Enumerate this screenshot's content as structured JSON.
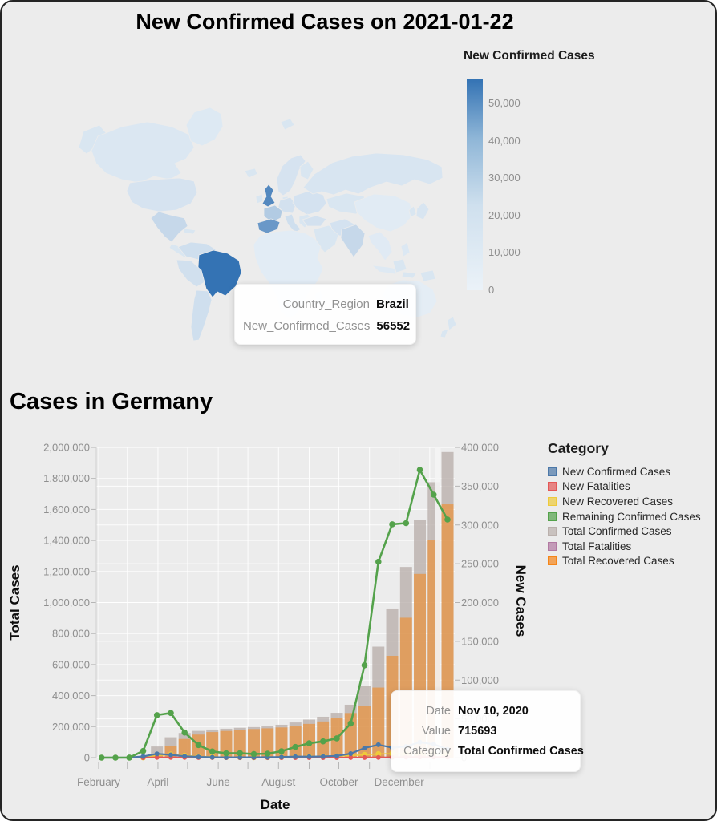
{
  "map_section": {
    "title": "New Confirmed Cases on 2021-01-22",
    "legend_title": "New Confirmed Cases"
  },
  "map_tooltip": {
    "rows": [
      {
        "key": "Country_Region",
        "value": "Brazil"
      },
      {
        "key": "New_Confirmed_Cases",
        "value": "56552"
      }
    ]
  },
  "germany": {
    "title": "Cases in Germany",
    "x_title": "Date",
    "y_left_title": "Total Cases",
    "y_right_title": "New Cases",
    "legend_title": "Category",
    "legend_entries": [
      {
        "label": "New Confirmed Cases",
        "color": "#4c78a8"
      },
      {
        "label": "New Fatalities",
        "color": "#e45756"
      },
      {
        "label": "New Recovered Cases",
        "color": "#eeca3b"
      },
      {
        "label": "Remaining Confirmed Cases",
        "color": "#54a24b"
      },
      {
        "label": "Total Confirmed Cases",
        "color": "#bab0ac"
      },
      {
        "label": "Total Fatalities",
        "color": "#b279a2"
      },
      {
        "label": "Total Recovered Cases",
        "color": "#f58518"
      }
    ]
  },
  "germany_tooltip": {
    "rows": [
      {
        "key": "Date",
        "value": "Nov 10, 2020"
      },
      {
        "key": "Value",
        "value": "715693"
      },
      {
        "key": "Category",
        "value": "Total Confirmed Cases"
      }
    ]
  },
  "chart_data": [
    {
      "type": "choropleth",
      "title": "New Confirmed Cases on 2021-01-22",
      "value_field": "New_Confirmed_Cases",
      "scale": {
        "domain": [
          0,
          56552
        ],
        "min_color": "#ebf2f8",
        "max_color": "#3473b4"
      },
      "legend_ticks": [
        {
          "v": 0,
          "label": "0"
        },
        {
          "v": 10000,
          "label": "10,000"
        },
        {
          "v": 20000,
          "label": "20,000"
        },
        {
          "v": 30000,
          "label": "30,000"
        },
        {
          "v": 40000,
          "label": "40,000"
        },
        {
          "v": 50000,
          "label": "50,000"
        }
      ],
      "default_value": 5500,
      "countries": {
        "brazil": 56552,
        "united-kingdom": 47000,
        "spain": 40000,
        "france": 17500,
        "mexico": 11500,
        "india": 11500,
        "italy": 8500,
        "central-europe": 7500,
        "east-europe": 7000,
        "colombia": 8500,
        "peru": 8000,
        "argentina": 8500,
        "usa": 6500,
        "canada": 5000,
        "russia": 6000,
        "scandinavia": 6500,
        "turkey": 7500,
        "iran": 7000,
        "africa": 2800,
        "china": 3000,
        "australia": 2200,
        "japan": 6000,
        "indonesia": 4000,
        "se-asia": 3500,
        "saudi-arabia": 5500,
        "greenland": 4200,
        "madagascar": 3000,
        "philippines": 4500
      }
    },
    {
      "type": "combo",
      "title": "Cases in Germany",
      "xlabel": "Date",
      "ylabel_left": "Total Cases",
      "ylabel_right": "New Cases",
      "ylim_left": [
        0,
        2000000
      ],
      "ylim_right": [
        0,
        400000
      ],
      "x_month_labels": [
        "February",
        "",
        "April",
        "",
        "June",
        "",
        "August",
        "",
        "October",
        "",
        "December",
        ""
      ],
      "y_left_ticks": [
        {
          "v": 0,
          "label": "0"
        },
        {
          "v": 200000,
          "label": "200,000"
        },
        {
          "v": 400000,
          "label": "400,000"
        },
        {
          "v": 600000,
          "label": "600,000"
        },
        {
          "v": 800000,
          "label": "800,000"
        },
        {
          "v": 1000000,
          "label": "1,000,000"
        },
        {
          "v": 1200000,
          "label": "1,200,000"
        },
        {
          "v": 1400000,
          "label": "1,400,000"
        },
        {
          "v": 1600000,
          "label": "1,600,000"
        },
        {
          "v": 1800000,
          "label": "1,800,000"
        },
        {
          "v": 2000000,
          "label": "2,000,000"
        }
      ],
      "y_right_ticks": [
        {
          "v": 0,
          "label": "0"
        },
        {
          "v": 50000,
          "label": "50,000"
        },
        {
          "v": 100000,
          "label": "100,000"
        },
        {
          "v": 150000,
          "label": "150,000"
        },
        {
          "v": 200000,
          "label": "200,000"
        },
        {
          "v": 250000,
          "label": "250,000"
        },
        {
          "v": 300000,
          "label": "300,000"
        },
        {
          "v": 350000,
          "label": "350,000"
        },
        {
          "v": 400000,
          "label": "400,000"
        }
      ],
      "x": [
        "2020-02-04",
        "2020-02-18",
        "2020-03-03",
        "2020-03-17",
        "2020-03-31",
        "2020-04-14",
        "2020-04-28",
        "2020-05-12",
        "2020-05-26",
        "2020-06-09",
        "2020-06-23",
        "2020-07-07",
        "2020-07-21",
        "2020-08-04",
        "2020-08-18",
        "2020-09-01",
        "2020-09-15",
        "2020-09-29",
        "2020-10-13",
        "2020-10-27",
        "2020-11-10",
        "2020-11-24",
        "2020-12-08",
        "2020-12-22",
        "2021-01-05",
        "2021-01-19"
      ],
      "series": [
        {
          "name": "Total Fatalities",
          "mark": "bar",
          "axis": "left",
          "color": "#b279a2",
          "opacity": 0.7,
          "values": [
            0,
            0,
            0,
            26,
            775,
            3294,
            6288,
            7661,
            8302,
            8752,
            8914,
            9074,
            9118,
            9201,
            9236,
            9290,
            9336,
            9464,
            9634,
            10032,
            11240,
            14361,
            19932,
            27006,
            35748,
            47622
          ]
        },
        {
          "name": "Total Confirmed Cases",
          "mark": "bar",
          "axis": "left",
          "color": "#bab0ac",
          "opacity": 0.8,
          "values": [
            16,
            16,
            196,
            9257,
            71808,
            131359,
            159119,
            172576,
            181200,
            186522,
            192480,
            198064,
            203368,
            212111,
            226914,
            245456,
            263663,
            289219,
            341223,
            464239,
            715693,
            961320,
            1229269,
            1530180,
            1775513,
            1970000
          ]
        },
        {
          "name": "Total Recovered Cases",
          "mark": "bar",
          "axis": "left",
          "color": "#f58518",
          "opacity": 0.55,
          "values": [
            0,
            12,
            25,
            500,
            16100,
            72600,
            120400,
            148700,
            164900,
            172200,
            177800,
            184400,
            189000,
            194600,
            204000,
            217700,
            233300,
            254900,
            287600,
            335100,
            452000,
            656400,
            902100,
            1184400,
            1404200,
            1632800
          ]
        },
        {
          "name": "New Recovered Cases",
          "mark": "line",
          "axis": "right",
          "color": "#eeca3b",
          "width": 1.6,
          "point_r": 3.6,
          "values": [
            0,
            0,
            10,
            200,
            2600,
            4100,
            2700,
            1500,
            900,
            600,
            500,
            450,
            500,
            700,
            1100,
            1300,
            1500,
            2000,
            2600,
            3800,
            4800,
            5200,
            5000,
            4800,
            4600,
            4200
          ]
        },
        {
          "name": "New Fatalities",
          "mark": "line",
          "axis": "right",
          "color": "#e45756",
          "width": 2,
          "point_r": 3,
          "values": [
            0,
            0,
            0,
            40,
            180,
            240,
            190,
            110,
            60,
            30,
            20,
            15,
            15,
            15,
            20,
            25,
            35,
            45,
            70,
            120,
            240,
            410,
            590,
            730,
            840,
            640
          ]
        },
        {
          "name": "New Confirmed Cases",
          "mark": "line",
          "axis": "right",
          "color": "#4c78a8",
          "width": 2.2,
          "point_r": 3,
          "values": [
            1,
            2,
            60,
            1600,
            5000,
            3600,
            1900,
            900,
            500,
            350,
            450,
            400,
            480,
            800,
            1300,
            1250,
            1600,
            2300,
            5200,
            12400,
            16600,
            12800,
            14500,
            19800,
            17300,
            10900
          ]
        },
        {
          "name": "Remaining Confirmed Cases",
          "mark": "line",
          "axis": "right",
          "color": "#54a24b",
          "width": 2.6,
          "point_r": 3.8,
          "values": [
            0,
            0,
            150,
            8600,
            54900,
            57600,
            32400,
            16200,
            8000,
            5600,
            5800,
            4600,
            5200,
            8300,
            13700,
            18500,
            21000,
            24900,
            44000,
            119100,
            252500,
            300900,
            302300,
            371000,
            339000,
            307000
          ]
        }
      ],
      "tooltip": {
        "date": "Nov 10, 2020",
        "value": 715693,
        "category": "Total Confirmed Cases"
      }
    }
  ]
}
